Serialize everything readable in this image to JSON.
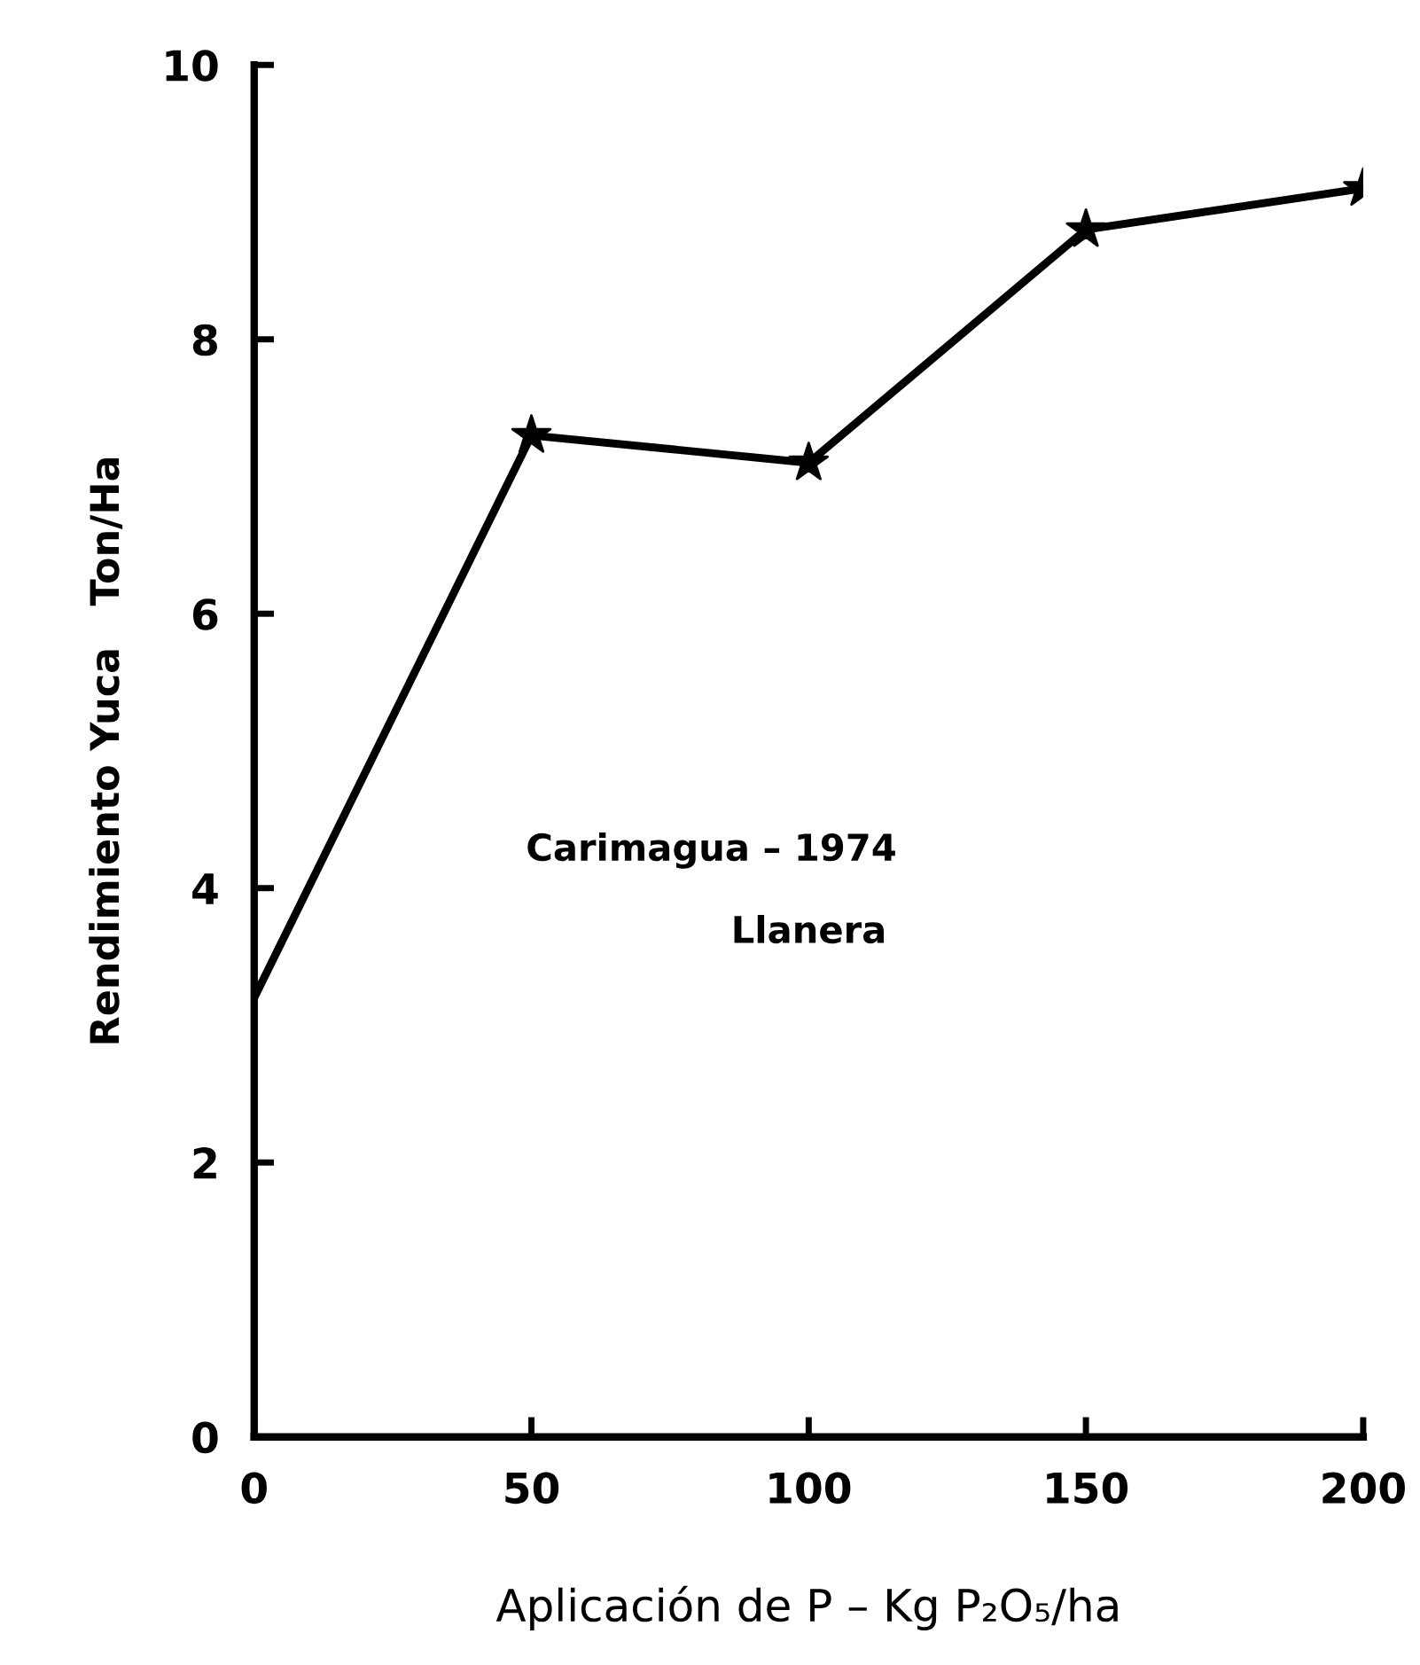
{
  "chart_data": {
    "type": "line",
    "xlabel": "Aplicación de P – Kg P₂O₅/ha",
    "ylabel": "Rendimiento Yuca   Ton/Ha",
    "annotations": [
      "Carimagua – 1974",
      "Llanera"
    ],
    "x": [
      0,
      50,
      100,
      150,
      200
    ],
    "series": [
      {
        "color": "#000000",
        "marker": "none",
        "values": [
          3.2,
          7.3,
          7.1,
          8.8,
          9.1
        ]
      },
      {
        "type": "scatter",
        "color": "#000000",
        "marker": "star",
        "x": [
          50,
          100,
          150,
          200
        ],
        "values": [
          7.3,
          7.1,
          8.8,
          9.1
        ]
      }
    ],
    "xlim": [
      0,
      200
    ],
    "xticks": [
      0,
      50,
      100,
      150,
      200
    ],
    "ylim": [
      0,
      10
    ],
    "yticks": [
      0,
      2,
      4,
      6,
      8,
      10
    ],
    "grid": false,
    "legend": false
  }
}
